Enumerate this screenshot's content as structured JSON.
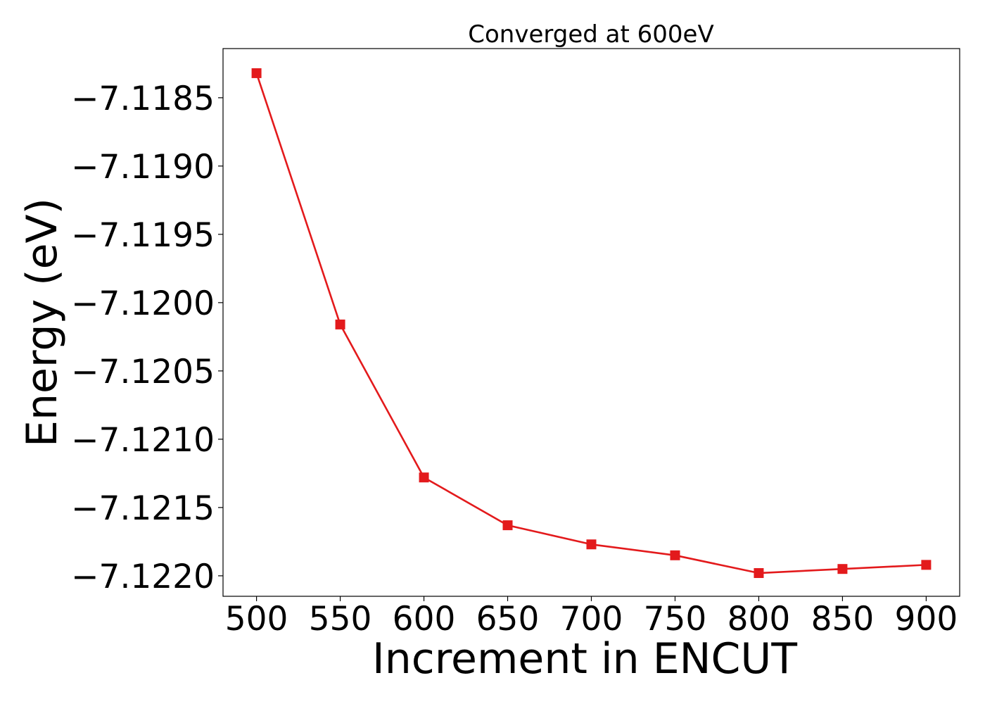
{
  "chart_data": {
    "type": "line",
    "title": "Converged at 600eV",
    "xlabel": "Increment in ENCUT",
    "ylabel": "Energy (eV)",
    "x": [
      500,
      550,
      600,
      650,
      700,
      750,
      800,
      850,
      900
    ],
    "series": [
      {
        "values": [
          -7.11832,
          -7.12016,
          -7.12128,
          -7.12163,
          -7.12177,
          -7.12185,
          -7.12198,
          -7.12195,
          -7.12192
        ],
        "color": "#e31a1c",
        "marker": "square"
      }
    ],
    "xticks": [
      500,
      550,
      600,
      650,
      700,
      750,
      800,
      850,
      900
    ],
    "xtick_labels": [
      "500",
      "550",
      "600",
      "650",
      "700",
      "750",
      "800",
      "850",
      "900"
    ],
    "yticks": [
      -7.1185,
      -7.119,
      -7.1195,
      -7.12,
      -7.1205,
      -7.121,
      -7.1215,
      -7.122
    ],
    "ytick_labels": [
      "−7.1185",
      "−7.1190",
      "−7.1195",
      "−7.1200",
      "−7.1205",
      "−7.1210",
      "−7.1215",
      "−7.1220"
    ],
    "xlim": [
      480,
      920
    ],
    "ylim": [
      -7.12215,
      -7.11814
    ],
    "grid": false,
    "legend": "none"
  }
}
